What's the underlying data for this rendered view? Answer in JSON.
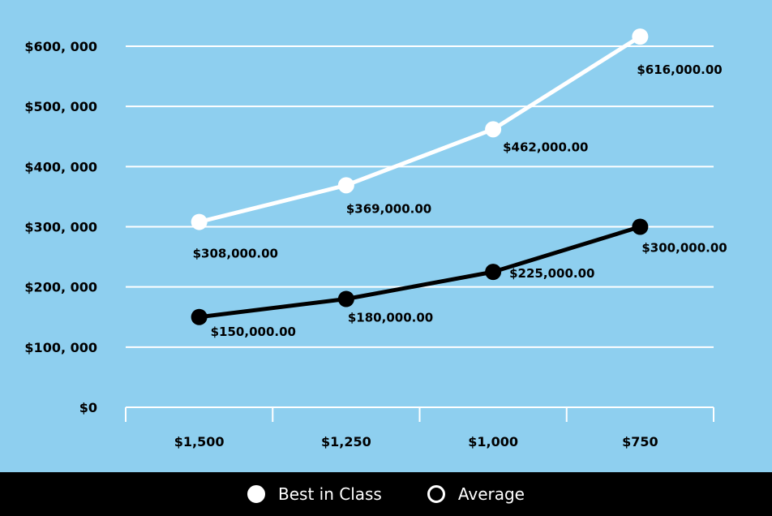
{
  "chart_data": {
    "type": "line",
    "title": "",
    "xlabel": "",
    "ylabel": "",
    "categories": [
      "$1,500",
      "$1,250",
      "$1,000",
      "$750"
    ],
    "ylim": [
      0,
      600000
    ],
    "y_ticks": [
      0,
      100000,
      200000,
      300000,
      400000,
      500000,
      600000
    ],
    "y_tick_labels": [
      "$0",
      "$100, 000",
      "$200, 000",
      "$300, 000",
      "$400, 000",
      "$500, 000",
      "$600, 000"
    ],
    "grid": true,
    "legend_position": "bottom",
    "series": [
      {
        "name": "Best in Class",
        "color": "#ffffff",
        "values": [
          308000,
          369000,
          462000,
          616000
        ],
        "labels": [
          "$308,000.00",
          "$369,000.00",
          "$462,000.00",
          "$616,000.00"
        ]
      },
      {
        "name": "Average",
        "color": "#000000",
        "values": [
          150000,
          180000,
          225000,
          300000
        ],
        "labels": [
          "$150,000.00",
          "$180,000.00",
          "$225,000.00",
          "$300,000.00"
        ]
      }
    ]
  },
  "legend": {
    "items": [
      {
        "label": "Best in Class",
        "swatch_fill": "#ffffff",
        "swatch_border": "#ffffff"
      },
      {
        "label": "Average",
        "swatch_fill": "#000000",
        "swatch_border": "#ffffff"
      }
    ]
  },
  "colors": {
    "background": "#8ecfef",
    "grid": "#ffffff",
    "axis_text": "#000000",
    "legend_bar": "#000000"
  }
}
